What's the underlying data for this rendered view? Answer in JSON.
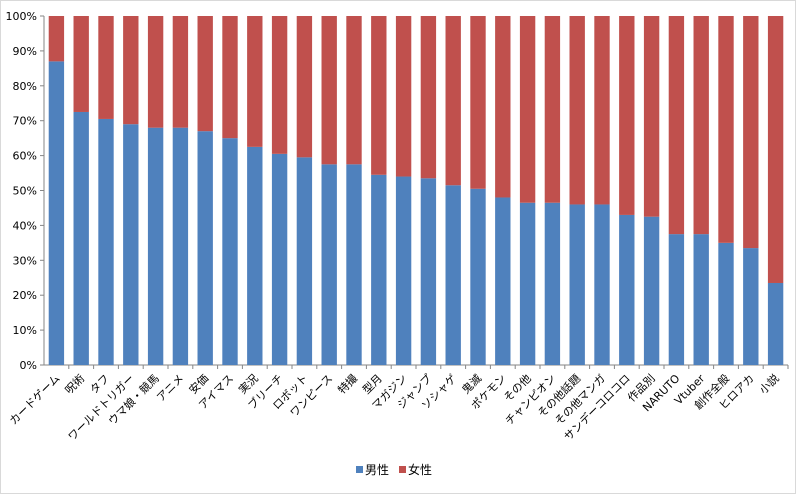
{
  "chart_data": {
    "type": "bar",
    "stacked": true,
    "percent": true,
    "title": "",
    "xlabel": "",
    "ylabel": "",
    "ylim": [
      0,
      100
    ],
    "yticks": [
      "0%",
      "10%",
      "20%",
      "30%",
      "40%",
      "50%",
      "60%",
      "70%",
      "80%",
      "90%",
      "100%"
    ],
    "grid": false,
    "legend_position": "bottom",
    "categories": [
      "カードゲーム",
      "呪術",
      "タフ",
      "ワールドトリガー",
      "ウマ娘・競馬",
      "アニメ",
      "安価",
      "アイマス",
      "実況",
      "ブリーチ",
      "ロボット",
      "ワンピース",
      "特撮",
      "型月",
      "マガジン",
      "ジャンプ",
      "ソシャゲ",
      "鬼滅",
      "ポケモン",
      "その他",
      "チャンピオン",
      "その他話題",
      "その他マンガ",
      "サンデーコロコロ",
      "作品別",
      "NARUTO",
      "Vtuber",
      "創作全般",
      "ヒロアカ",
      "小説"
    ],
    "series": [
      {
        "name": "男性",
        "color": "#4f81bd",
        "values": [
          87,
          72.5,
          70.5,
          69,
          68,
          68,
          67,
          65,
          62.5,
          60.5,
          59.5,
          57.5,
          57.5,
          54.5,
          54,
          53.5,
          51.5,
          50.5,
          48,
          46.5,
          46.5,
          46,
          46,
          43,
          42.5,
          37.5,
          37.5,
          35,
          33.5,
          23.5
        ]
      },
      {
        "name": "女性",
        "color": "#c0504d",
        "values": [
          13,
          27.5,
          29.5,
          31,
          32,
          32,
          33,
          35,
          37.5,
          39.5,
          40.5,
          42.5,
          42.5,
          45.5,
          46,
          46.5,
          48.5,
          49.5,
          52,
          53.5,
          53.5,
          54,
          54,
          57,
          57.5,
          62.5,
          62.5,
          65,
          66.5,
          76.5
        ]
      }
    ]
  }
}
